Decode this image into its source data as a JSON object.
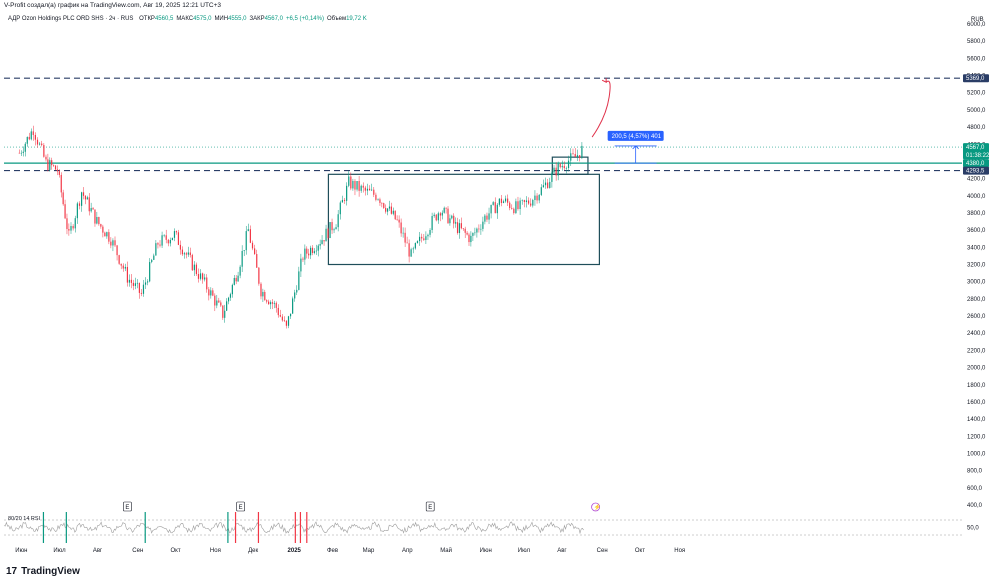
{
  "header": {
    "credit": "V-Profit создал(а) график на TradingView.com, Авг 19, 2025 12:21 UTC+3",
    "symbol": "АДР Ozon Holdings PLC ORD SHS · 2ч · RUS",
    "ohlc": [
      {
        "label": "ОТКР",
        "value": "4560,5"
      },
      {
        "label": "МАКС",
        "value": "4575,0"
      },
      {
        "label": "МИН",
        "value": "4555,0"
      },
      {
        "label": "ЗАКР",
        "value": "4567,0"
      },
      {
        "label": "",
        "value": "+6,5 (+0,14%)"
      },
      {
        "label": "Объем",
        "value": "19,72 K"
      }
    ],
    "currency": "RUB"
  },
  "footer": {
    "logo": "17",
    "brand": "TradingView"
  },
  "colors": {
    "up": "#089981",
    "down": "#f23645",
    "axis": "#131722",
    "level_dark": "#2a3d66",
    "level_teal": "#089981",
    "box": "#1f4e5a",
    "projection": "#e0314a"
  },
  "chart_data": {
    "type": "candlestick",
    "title": "АДР Ozon Holdings PLC ORD SHS",
    "timeframe": "2ч",
    "y_axis": {
      "unit": "RUB",
      "range": [
        400,
        6000
      ],
      "ticks": [
        "6000,0",
        "5800,0",
        "5600,0",
        "5400,0",
        "5200,0",
        "5000,0",
        "4800,0",
        "4600,0",
        "4400,0",
        "4200,0",
        "4000,0",
        "3800,0",
        "3600,0",
        "3400,0",
        "3200,0",
        "3000,0",
        "2800,0",
        "2600,0",
        "2400,0",
        "2200,0",
        "2000,0",
        "1800,0",
        "1600,0",
        "1400,0",
        "1200,0",
        "1000,0",
        "800,0",
        "600,0",
        "400,0"
      ]
    },
    "x_axis": {
      "ticks": [
        "Июн",
        "Июл",
        "Авг",
        "Сен",
        "Окт",
        "Ноя",
        "Дек",
        "2025",
        "Фев",
        "Мар",
        "Апр",
        "Май",
        "Июн",
        "Июл",
        "Авг",
        "Сен",
        "Окт",
        "Ноя"
      ]
    },
    "price_path": [
      {
        "date": "2024-06-01",
        "close": 4500
      },
      {
        "date": "2024-06-12",
        "close": 4780
      },
      {
        "date": "2024-06-22",
        "close": 4380
      },
      {
        "date": "2024-07-01",
        "close": 4300
      },
      {
        "date": "2024-07-10",
        "close": 3520
      },
      {
        "date": "2024-07-20",
        "close": 4050
      },
      {
        "date": "2024-08-01",
        "close": 3700
      },
      {
        "date": "2024-08-12",
        "close": 3500
      },
      {
        "date": "2024-08-25",
        "close": 3050
      },
      {
        "date": "2024-09-05",
        "close": 2850
      },
      {
        "date": "2024-09-18",
        "close": 3450
      },
      {
        "date": "2024-10-01",
        "close": 3550
      },
      {
        "date": "2024-10-15",
        "close": 3200
      },
      {
        "date": "2024-10-28",
        "close": 2900
      },
      {
        "date": "2024-11-08",
        "close": 2620
      },
      {
        "date": "2024-11-20",
        "close": 3150
      },
      {
        "date": "2024-11-28",
        "close": 3600
      },
      {
        "date": "2024-12-08",
        "close": 2900
      },
      {
        "date": "2024-12-20",
        "close": 2700
      },
      {
        "date": "2024-12-28",
        "close": 2450
      },
      {
        "date": "2025-01-10",
        "close": 3300
      },
      {
        "date": "2025-01-25",
        "close": 3500
      },
      {
        "date": "2025-02-05",
        "close": 3700
      },
      {
        "date": "2025-02-15",
        "close": 4150
      },
      {
        "date": "2025-02-28",
        "close": 4050
      },
      {
        "date": "2025-03-10",
        "close": 4000
      },
      {
        "date": "2025-03-25",
        "close": 3700
      },
      {
        "date": "2025-04-05",
        "close": 3300
      },
      {
        "date": "2025-04-15",
        "close": 3550
      },
      {
        "date": "2025-04-28",
        "close": 3850
      },
      {
        "date": "2025-05-10",
        "close": 3650
      },
      {
        "date": "2025-05-22",
        "close": 3500
      },
      {
        "date": "2025-06-02",
        "close": 3750
      },
      {
        "date": "2025-06-15",
        "close": 3950
      },
      {
        "date": "2025-06-28",
        "close": 3850
      },
      {
        "date": "2025-07-08",
        "close": 3950
      },
      {
        "date": "2025-07-18",
        "close": 4100
      },
      {
        "date": "2025-07-28",
        "close": 4300
      },
      {
        "date": "2025-08-05",
        "close": 4400
      },
      {
        "date": "2025-08-12",
        "close": 4450
      },
      {
        "date": "2025-08-19",
        "close": 4567
      }
    ],
    "levels": [
      {
        "price": 5369,
        "label": "5369,0",
        "style": "dashed",
        "color": "#2a3d66"
      },
      {
        "price": 4567,
        "label": "4567,0",
        "sublabel": "01:38:22",
        "style": "dotted",
        "color": "#089981"
      },
      {
        "price": 4380,
        "label": "4380,0",
        "style": "solid",
        "color": "#089981"
      },
      {
        "price": 4293.5,
        "label": "4293,5",
        "style": "dashed",
        "color": "#2a3d66"
      }
    ],
    "rectangles": [
      {
        "from": "2025-01-30",
        "to": "2025-08-31",
        "low": 3200,
        "high": 4250
      },
      {
        "from": "2025-07-25",
        "to": "2025-08-22",
        "low": 4250,
        "high": 4450
      }
    ],
    "projection": {
      "from_date": "2025-08-19",
      "from_price": 4567,
      "to_date": "2025-09-10",
      "to_price": 5369,
      "color": "#e0314a"
    },
    "measure": {
      "label": "200,5 (4,57%) 401",
      "from_price": 4380,
      "to_price": 4580.5,
      "from_date": "2025-09-12",
      "to_date": "2025-10-15"
    },
    "event_markers": [
      {
        "date": "2024-08-25",
        "label": "E"
      },
      {
        "date": "2024-11-22",
        "label": "E"
      },
      {
        "date": "2025-04-20",
        "label": "E"
      },
      {
        "date": "2025-08-28",
        "label": "⚡"
      }
    ],
    "rsi": {
      "label": "80/20 14 RSI",
      "value_label": "50,0",
      "upper": 80,
      "lower": 20,
      "signals": [
        {
          "date": "2024-06-20",
          "color": "#089981"
        },
        {
          "date": "2024-07-08",
          "color": "#089981"
        },
        {
          "date": "2024-09-08",
          "color": "#089981"
        },
        {
          "date": "2024-11-12",
          "color": "#089981"
        },
        {
          "date": "2024-11-18",
          "color": "#f23645"
        },
        {
          "date": "2024-12-06",
          "color": "#f23645"
        },
        {
          "date": "2025-01-04",
          "color": "#f23645"
        },
        {
          "date": "2025-01-08",
          "color": "#f23645"
        },
        {
          "date": "2025-01-13",
          "color": "#f23645"
        }
      ]
    }
  }
}
